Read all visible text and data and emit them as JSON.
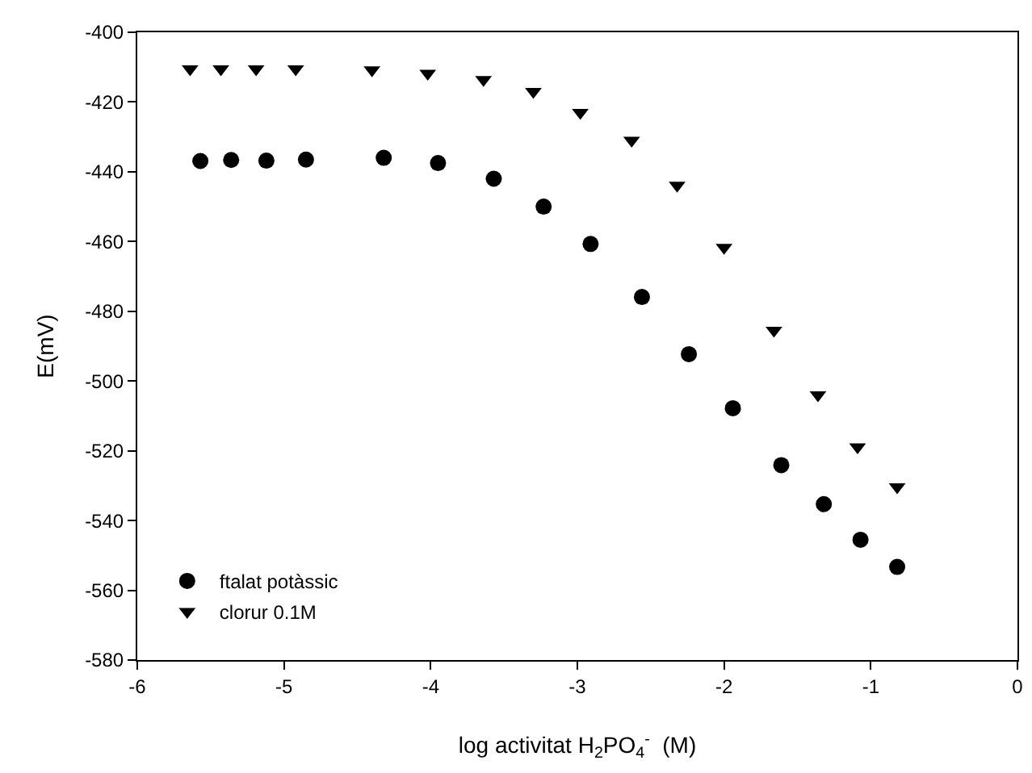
{
  "chart_data": {
    "type": "scatter",
    "xlabel": "log activitat H$_{2}$PO$_{4}$$^{-}$  (M)",
    "ylabel": "E(mV)",
    "xlim": [
      -6,
      0
    ],
    "xticks": [
      -6,
      -5,
      -4,
      -3,
      -2,
      -1,
      0
    ],
    "ylim": [
      -580,
      -400
    ],
    "yticks": [
      -580,
      -560,
      -540,
      -520,
      -500,
      -480,
      -460,
      -440,
      -420,
      -400
    ],
    "legend": "bottom left",
    "series": [
      {
        "name": "ftalat potàssic",
        "color": "#000000",
        "marker": "circle",
        "x": [
          -5.57,
          -5.36,
          -5.12,
          -4.85,
          -4.32,
          -3.95,
          -3.57,
          -3.23,
          -2.91,
          -2.56,
          -2.24,
          -1.94,
          -1.61,
          -1.32,
          -1.07,
          -0.82
        ],
        "values": [
          -436.9,
          -436.6,
          -436.8,
          -436.5,
          -436.0,
          -437.5,
          -442.0,
          -450.0,
          -460.7,
          -475.9,
          -492.3,
          -507.8,
          -524.1,
          -535.3,
          -545.5,
          -553.3
        ]
      },
      {
        "name": "clorur 0.1M",
        "color": "#000000",
        "marker": "triangle",
        "x": [
          -5.64,
          -5.43,
          -5.19,
          -4.92,
          -4.4,
          -4.02,
          -3.64,
          -3.3,
          -2.98,
          -2.63,
          -2.32,
          -2.0,
          -1.66,
          -1.36,
          -1.09,
          -0.82
        ],
        "values": [
          -410.5,
          -410.5,
          -410.5,
          -410.5,
          -410.8,
          -411.8,
          -413.6,
          -417.0,
          -423.0,
          -431.0,
          -443.9,
          -461.7,
          -485.5,
          -504.0,
          -518.9,
          -530.4
        ]
      }
    ]
  }
}
